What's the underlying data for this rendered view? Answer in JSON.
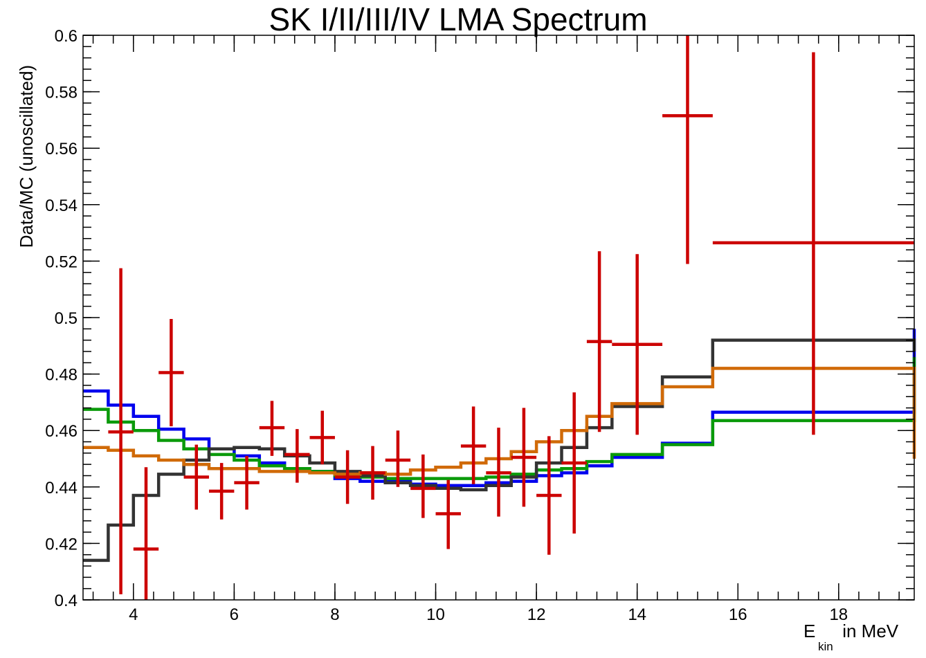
{
  "chart_data": {
    "type": "line",
    "title": "SK I/II/III/IV LMA Spectrum",
    "xlabel_main": "E",
    "xlabel_sub": "kin",
    "xlabel_rest": " in MeV",
    "ylabel": "Data/MC (unoscillated)",
    "xlim": [
      3.0,
      19.5
    ],
    "ylim": [
      0.4,
      0.6
    ],
    "x_ticks": [
      4,
      6,
      8,
      10,
      12,
      14,
      16,
      18
    ],
    "x_tick_labels": [
      "4",
      "6",
      "8",
      "10",
      "12",
      "14",
      "16",
      "18"
    ],
    "y_ticks": [
      0.4,
      0.42,
      0.44,
      0.46,
      0.48,
      0.5,
      0.52,
      0.54,
      0.56,
      0.58,
      0.6
    ],
    "y_tick_labels": [
      "0.4",
      "0.42",
      "0.44",
      "0.46",
      "0.48",
      "0.5",
      "0.52",
      "0.54",
      "0.56",
      "0.58",
      "0.6"
    ],
    "grid": false,
    "bin_edges": [
      3.0,
      3.5,
      4.0,
      4.5,
      5.0,
      5.5,
      6.0,
      6.5,
      7.0,
      7.5,
      8.0,
      8.5,
      9.0,
      9.5,
      10.0,
      10.5,
      11.0,
      11.5,
      12.0,
      12.5,
      13.0,
      13.5,
      14.5,
      15.5,
      19.5
    ],
    "series": [
      {
        "color": "#0000ee",
        "values": [
          0.474,
          0.469,
          0.465,
          0.4605,
          0.457,
          0.4535,
          0.451,
          0.4485,
          0.4465,
          0.4455,
          0.443,
          0.442,
          0.442,
          0.441,
          0.4405,
          0.4405,
          0.4415,
          0.442,
          0.444,
          0.445,
          0.4475,
          0.4505,
          0.4555,
          0.4665,
          0.496
        ]
      },
      {
        "color": "#0a9a0a",
        "values": [
          0.4675,
          0.463,
          0.46,
          0.4565,
          0.4535,
          0.4515,
          0.4495,
          0.4475,
          0.4465,
          0.4455,
          0.444,
          0.4435,
          0.443,
          0.443,
          0.443,
          0.443,
          0.4435,
          0.4445,
          0.446,
          0.4465,
          0.449,
          0.4515,
          0.455,
          0.4635,
          0.486
        ]
      },
      {
        "color": "#333333",
        "values": [
          0.414,
          0.4265,
          0.437,
          0.4445,
          0.4495,
          0.4535,
          0.454,
          0.4535,
          0.451,
          0.4485,
          0.4455,
          0.444,
          0.4415,
          0.4405,
          0.4395,
          0.439,
          0.4405,
          0.4435,
          0.4485,
          0.454,
          0.461,
          0.4685,
          0.479,
          0.492,
          0.488
        ]
      },
      {
        "color": "#d06a08",
        "values": [
          0.454,
          0.453,
          0.451,
          0.4495,
          0.448,
          0.4465,
          0.4465,
          0.4455,
          0.4455,
          0.445,
          0.4445,
          0.445,
          0.4445,
          0.446,
          0.447,
          0.4485,
          0.45,
          0.4525,
          0.456,
          0.46,
          0.465,
          0.4695,
          0.4755,
          0.482,
          0.45
        ]
      }
    ],
    "data_points": {
      "color": "#cc0000",
      "points": [
        {
          "x": 3.75,
          "y": 0.4595,
          "xerr": 0.25,
          "ylo": 0.402,
          "yhi": 0.5175
        },
        {
          "x": 4.25,
          "y": 0.418,
          "xerr": 0.25,
          "ylo": 0.389,
          "yhi": 0.447
        },
        {
          "x": 4.75,
          "y": 0.4805,
          "xerr": 0.25,
          "ylo": 0.4615,
          "yhi": 0.4995
        },
        {
          "x": 5.25,
          "y": 0.4435,
          "xerr": 0.25,
          "ylo": 0.432,
          "yhi": 0.455
        },
        {
          "x": 5.75,
          "y": 0.4385,
          "xerr": 0.25,
          "ylo": 0.4285,
          "yhi": 0.4485
        },
        {
          "x": 6.25,
          "y": 0.4415,
          "xerr": 0.25,
          "ylo": 0.432,
          "yhi": 0.451
        },
        {
          "x": 6.75,
          "y": 0.461,
          "xerr": 0.25,
          "ylo": 0.451,
          "yhi": 0.4705
        },
        {
          "x": 7.25,
          "y": 0.4515,
          "xerr": 0.25,
          "ylo": 0.4415,
          "yhi": 0.4605
        },
        {
          "x": 7.75,
          "y": 0.4575,
          "xerr": 0.25,
          "ylo": 0.448,
          "yhi": 0.467
        },
        {
          "x": 8.25,
          "y": 0.4435,
          "xerr": 0.25,
          "ylo": 0.434,
          "yhi": 0.453
        },
        {
          "x": 8.75,
          "y": 0.445,
          "xerr": 0.25,
          "ylo": 0.4355,
          "yhi": 0.4545
        },
        {
          "x": 9.25,
          "y": 0.4495,
          "xerr": 0.25,
          "ylo": 0.44,
          "yhi": 0.46
        },
        {
          "x": 9.75,
          "y": 0.4395,
          "xerr": 0.25,
          "ylo": 0.429,
          "yhi": 0.4515
        },
        {
          "x": 10.25,
          "y": 0.4305,
          "xerr": 0.25,
          "ylo": 0.418,
          "yhi": 0.4425
        },
        {
          "x": 10.75,
          "y": 0.4545,
          "xerr": 0.25,
          "ylo": 0.441,
          "yhi": 0.4685
        },
        {
          "x": 11.25,
          "y": 0.445,
          "xerr": 0.25,
          "ylo": 0.4295,
          "yhi": 0.461
        },
        {
          "x": 11.75,
          "y": 0.4505,
          "xerr": 0.25,
          "ylo": 0.433,
          "yhi": 0.468
        },
        {
          "x": 12.25,
          "y": 0.437,
          "xerr": 0.25,
          "ylo": 0.416,
          "yhi": 0.458
        },
        {
          "x": 12.75,
          "y": 0.4485,
          "xerr": 0.25,
          "ylo": 0.4235,
          "yhi": 0.4735
        },
        {
          "x": 13.25,
          "y": 0.4915,
          "xerr": 0.25,
          "ylo": 0.4595,
          "yhi": 0.5235
        },
        {
          "x": 14.0,
          "y": 0.4905,
          "xerr": 0.5,
          "ylo": 0.4585,
          "yhi": 0.5225
        },
        {
          "x": 15.0,
          "y": 0.5715,
          "xerr": 0.5,
          "ylo": 0.519,
          "yhi": 0.6
        },
        {
          "x": 17.5,
          "y": 0.5265,
          "xerr": 2.0,
          "ylo": 0.4585,
          "yhi": 0.594
        }
      ]
    }
  }
}
